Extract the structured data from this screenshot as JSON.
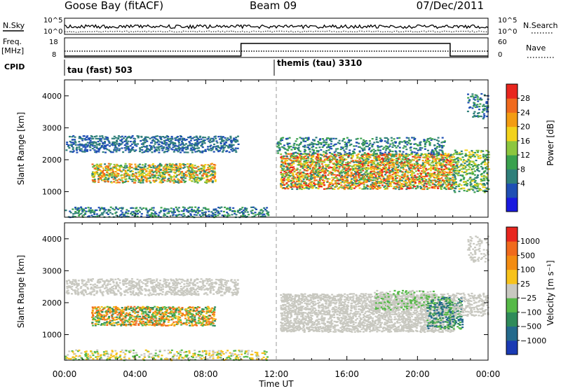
{
  "header": {
    "station": "Goose Bay (fitACF)",
    "beam": "Beam 09",
    "date": "07/Dec/2011"
  },
  "strips": {
    "nsky": {
      "label_left": "N.Sky",
      "label_right": "N.Search",
      "ticks_left": [
        "10^5",
        "10^0"
      ],
      "ticks_right": [
        "10^5",
        "10^0"
      ]
    },
    "freq": {
      "label_left": "Freq.",
      "unit_left": "[MHz]",
      "label_right": "Nave",
      "ticks_left": [
        "18",
        "8"
      ],
      "ticks_right": [
        "60",
        "0"
      ],
      "nave_step": {
        "low": 0,
        "high": 45,
        "start_hr": 10.0,
        "end_hr": 21.85
      }
    },
    "cpid": {
      "label": "CPID",
      "entries": [
        {
          "name": "tau (fast) 503",
          "start_hr": 0.0
        },
        {
          "name": "themis (tau) 3310",
          "start_hr": 12.0
        }
      ]
    }
  },
  "chart_data": [
    {
      "type": "heatmap",
      "panel": "power",
      "ylabel": "Slant Range [km]",
      "ylim": [
        200,
        4500
      ],
      "yticks": [
        1000,
        2000,
        3000,
        4000
      ],
      "xlim": [
        0,
        24
      ],
      "colorbar": {
        "label": "Power [dB]",
        "ticks": [
          "28",
          "24",
          "20",
          "16",
          "12",
          "8",
          "4"
        ],
        "colors": [
          "#1a1adf",
          "#1f4fb4",
          "#2f7f7a",
          "#3aa14e",
          "#8cc63e",
          "#f2d21b",
          "#f39c12",
          "#f06a1d",
          "#e8261e"
        ]
      },
      "scatter_regions": [
        {
          "t0": 0.05,
          "t1": 9.8,
          "r0": 2250,
          "r1": 2750,
          "color_idx": [
            1,
            2
          ],
          "density": 0.45
        },
        {
          "t0": 1.5,
          "t1": 8.5,
          "r0": 1300,
          "r1": 1900,
          "color_idx": [
            2,
            3,
            4,
            5,
            6,
            7
          ],
          "density": 0.55
        },
        {
          "t0": 0.0,
          "t1": 11.5,
          "r0": 220,
          "r1": 550,
          "color_idx": [
            1,
            2,
            3
          ],
          "density": 0.35
        },
        {
          "t0": 12.2,
          "t1": 22.0,
          "r0": 1100,
          "r1": 2200,
          "color_idx": [
            2,
            3,
            4,
            5,
            6,
            7,
            8
          ],
          "density": 0.6
        },
        {
          "t0": 12.0,
          "t1": 21.5,
          "r0": 2200,
          "r1": 2700,
          "color_idx": [
            1,
            2,
            3
          ],
          "density": 0.3
        },
        {
          "t0": 22.0,
          "t1": 24.0,
          "r0": 1000,
          "r1": 2300,
          "color_idx": [
            2,
            3,
            4,
            5
          ],
          "density": 0.4
        },
        {
          "t0": 22.8,
          "t1": 24.0,
          "r0": 3300,
          "r1": 4100,
          "color_idx": [
            1,
            2,
            3
          ],
          "density": 0.3
        }
      ]
    },
    {
      "type": "heatmap",
      "panel": "velocity",
      "ylabel": "Slant Range [km]",
      "ylim": [
        200,
        4500
      ],
      "yticks": [
        1000,
        2000,
        3000,
        4000
      ],
      "xlim": [
        0,
        24
      ],
      "xticks": [
        "00:00",
        "04:00",
        "08:00",
        "12:00",
        "16:00",
        "20:00",
        "00:00"
      ],
      "xlabel": "Time UT",
      "colorbar": {
        "label": "Velocity [m s⁻¹]",
        "ticks": [
          "1000",
          "500",
          "100",
          "25",
          "−25",
          "−100",
          "−500",
          "−1000"
        ],
        "colors": [
          "#1a3ab4",
          "#246a8c",
          "#2f8b5a",
          "#56b948",
          "#c8c8c0",
          "#f7c21b",
          "#f38c12",
          "#f06a1d",
          "#e8261e"
        ]
      },
      "scatter_regions": [
        {
          "t0": 0.05,
          "t1": 9.8,
          "r0": 2250,
          "r1": 2750,
          "color_idx": [
            4
          ],
          "density": 0.45
        },
        {
          "t0": 1.5,
          "t1": 8.5,
          "r0": 1300,
          "r1": 1900,
          "color_idx": [
            2,
            3,
            5,
            6,
            7
          ],
          "density": 0.55
        },
        {
          "t0": 0.0,
          "t1": 11.5,
          "r0": 220,
          "r1": 550,
          "color_idx": [
            3,
            4,
            5
          ],
          "density": 0.3
        },
        {
          "t0": 12.2,
          "t1": 22.0,
          "r0": 1100,
          "r1": 2300,
          "color_idx": [
            4
          ],
          "density": 0.6
        },
        {
          "t0": 17.5,
          "t1": 21.0,
          "r0": 1800,
          "r1": 2400,
          "color_idx": [
            3,
            4
          ],
          "density": 0.3
        },
        {
          "t0": 20.5,
          "t1": 22.5,
          "r0": 1200,
          "r1": 2200,
          "color_idx": [
            1,
            2,
            3
          ],
          "density": 0.35
        },
        {
          "t0": 22.0,
          "t1": 24.0,
          "r0": 1600,
          "r1": 2300,
          "color_idx": [
            4
          ],
          "density": 0.4
        },
        {
          "t0": 22.8,
          "t1": 24.0,
          "r0": 3300,
          "r1": 4100,
          "color_idx": [
            4
          ],
          "density": 0.3
        }
      ]
    }
  ]
}
